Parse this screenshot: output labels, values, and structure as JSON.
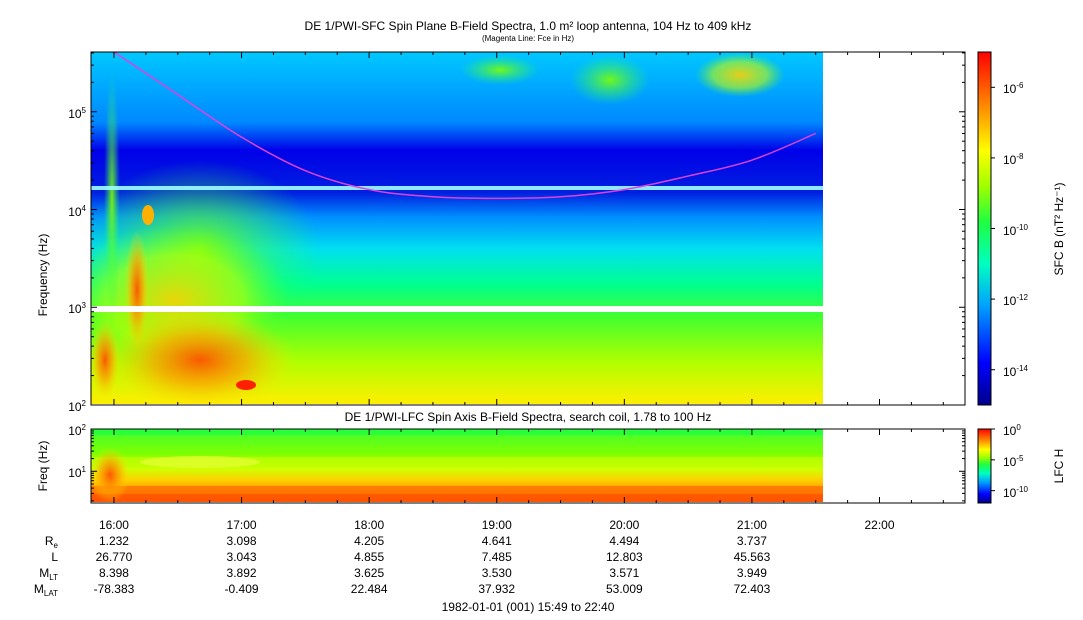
{
  "chart_data": [
    {
      "type": "heatmap",
      "title": "DE 1/PWI-SFC  Spin Plane B-Field Spectra, 1.0 m² loop antenna, 104 Hz to 409 kHz",
      "subtitle": "(Magenta Line: Fce in Hz)",
      "xlabel": "",
      "ylabel": "Frequency (Hz)",
      "yscale": "log",
      "ylim": [
        100,
        409000
      ],
      "xlim_hours": [
        15.82,
        22.67
      ],
      "data_end_hour": 21.5,
      "y_ticks": [
        {
          "label_base": "10",
          "label_exp": "2",
          "value": 100
        },
        {
          "label_base": "10",
          "label_exp": "3",
          "value": 1000
        },
        {
          "label_base": "10",
          "label_exp": "4",
          "value": 10000
        },
        {
          "label_base": "10",
          "label_exp": "5",
          "value": 100000
        }
      ],
      "colorbar": {
        "label": "SFC B (nT² Hz⁻¹)",
        "scale": "log",
        "range": [
          1e-15,
          1e-05
        ],
        "ticks": [
          {
            "base": "10",
            "exp": "-6",
            "value": -6
          },
          {
            "base": "10",
            "exp": "-8",
            "value": -8
          },
          {
            "base": "10",
            "exp": "-10",
            "value": -10
          },
          {
            "base": "10",
            "exp": "-12",
            "value": -12
          },
          {
            "base": "10",
            "exp": "-14",
            "value": -14
          }
        ]
      },
      "fce_curve": {
        "name": "Fce in Hz",
        "color": "#e040e0",
        "hours": [
          16.0,
          16.5,
          17.0,
          17.5,
          18.0,
          18.5,
          19.0,
          19.5,
          20.0,
          20.5,
          21.0,
          21.5
        ],
        "values_hz": [
          409000,
          150000,
          55000,
          25000,
          16000,
          13500,
          13000,
          13500,
          16000,
          22000,
          32000,
          60000
        ]
      },
      "data_gap_hz": 1000
    },
    {
      "type": "heatmap",
      "title": "DE 1/PWI-LFC  Spin Axis B-Field Spectra, search coil, 1.78 to 100 Hz",
      "ylabel": "Freq (Hz)",
      "yscale": "log",
      "ylim": [
        1.78,
        100
      ],
      "y_ticks": [
        {
          "label_base": "10",
          "label_exp": "1",
          "value": 10
        },
        {
          "label_base": "10",
          "label_exp": "2",
          "value": 100
        }
      ],
      "colorbar": {
        "label": "LFC H",
        "scale": "log",
        "range": [
          1e-12,
          1
        ],
        "ticks": [
          {
            "base": "10",
            "exp": "0",
            "value": 0
          },
          {
            "base": "10",
            "exp": "-5",
            "value": -5
          },
          {
            "base": "10",
            "exp": "-10",
            "value": -10
          }
        ]
      }
    }
  ],
  "time_axis": {
    "ticks": [
      {
        "label": "16:00",
        "hour": 16
      },
      {
        "label": "17:00",
        "hour": 17
      },
      {
        "label": "18:00",
        "hour": 18
      },
      {
        "label": "19:00",
        "hour": 19
      },
      {
        "label": "20:00",
        "hour": 20
      },
      {
        "label": "21:00",
        "hour": 21
      },
      {
        "label": "22:00",
        "hour": 22
      }
    ],
    "footer": "1982-01-01 (001) 15:49 to 22:40"
  },
  "ephemeris": {
    "rows": [
      {
        "name": "R",
        "sub": "e",
        "values": [
          "1.232",
          "3.098",
          "4.205",
          "4.641",
          "4.494",
          "3.737"
        ]
      },
      {
        "name": "L",
        "sub": "",
        "values": [
          "26.770",
          "3.043",
          "4.855",
          "7.485",
          "12.803",
          "45.563"
        ]
      },
      {
        "name": "M",
        "sub": "LT",
        "values": [
          "8.398",
          "3.892",
          "3.625",
          "3.530",
          "3.571",
          "3.949"
        ]
      },
      {
        "name": "M",
        "sub": "LAT",
        "values": [
          "-78.383",
          "-0.409",
          "22.484",
          "37.932",
          "53.009",
          "72.403"
        ]
      }
    ]
  }
}
